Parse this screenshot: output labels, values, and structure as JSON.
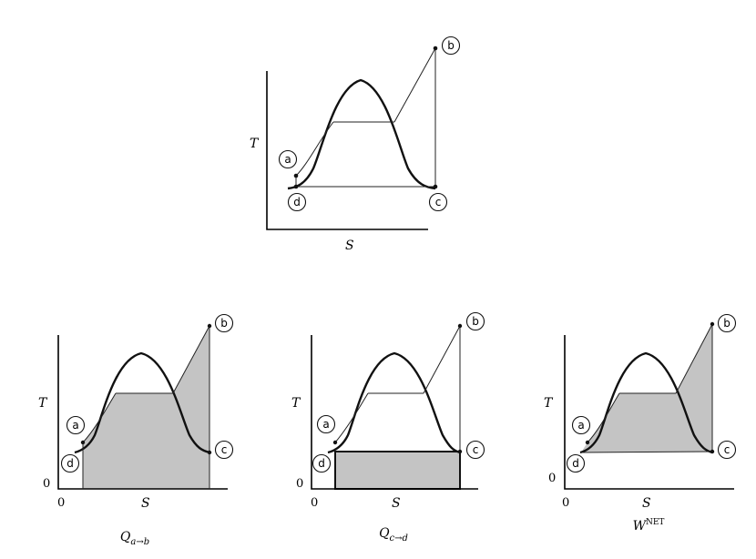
{
  "diagram": {
    "axis_t": "T",
    "axis_s": "S",
    "origin": "0",
    "points": {
      "a": "a",
      "b": "b",
      "c": "c",
      "d": "d"
    },
    "captions": {
      "q_ab_main": "Q",
      "q_ab_sub": "a→b",
      "q_cd_main": "Q",
      "q_cd_sub": "c→d",
      "w_main": "W",
      "w_sup": "NET"
    },
    "colors": {
      "shade": "#c4c4c4",
      "line": "#111111"
    }
  }
}
